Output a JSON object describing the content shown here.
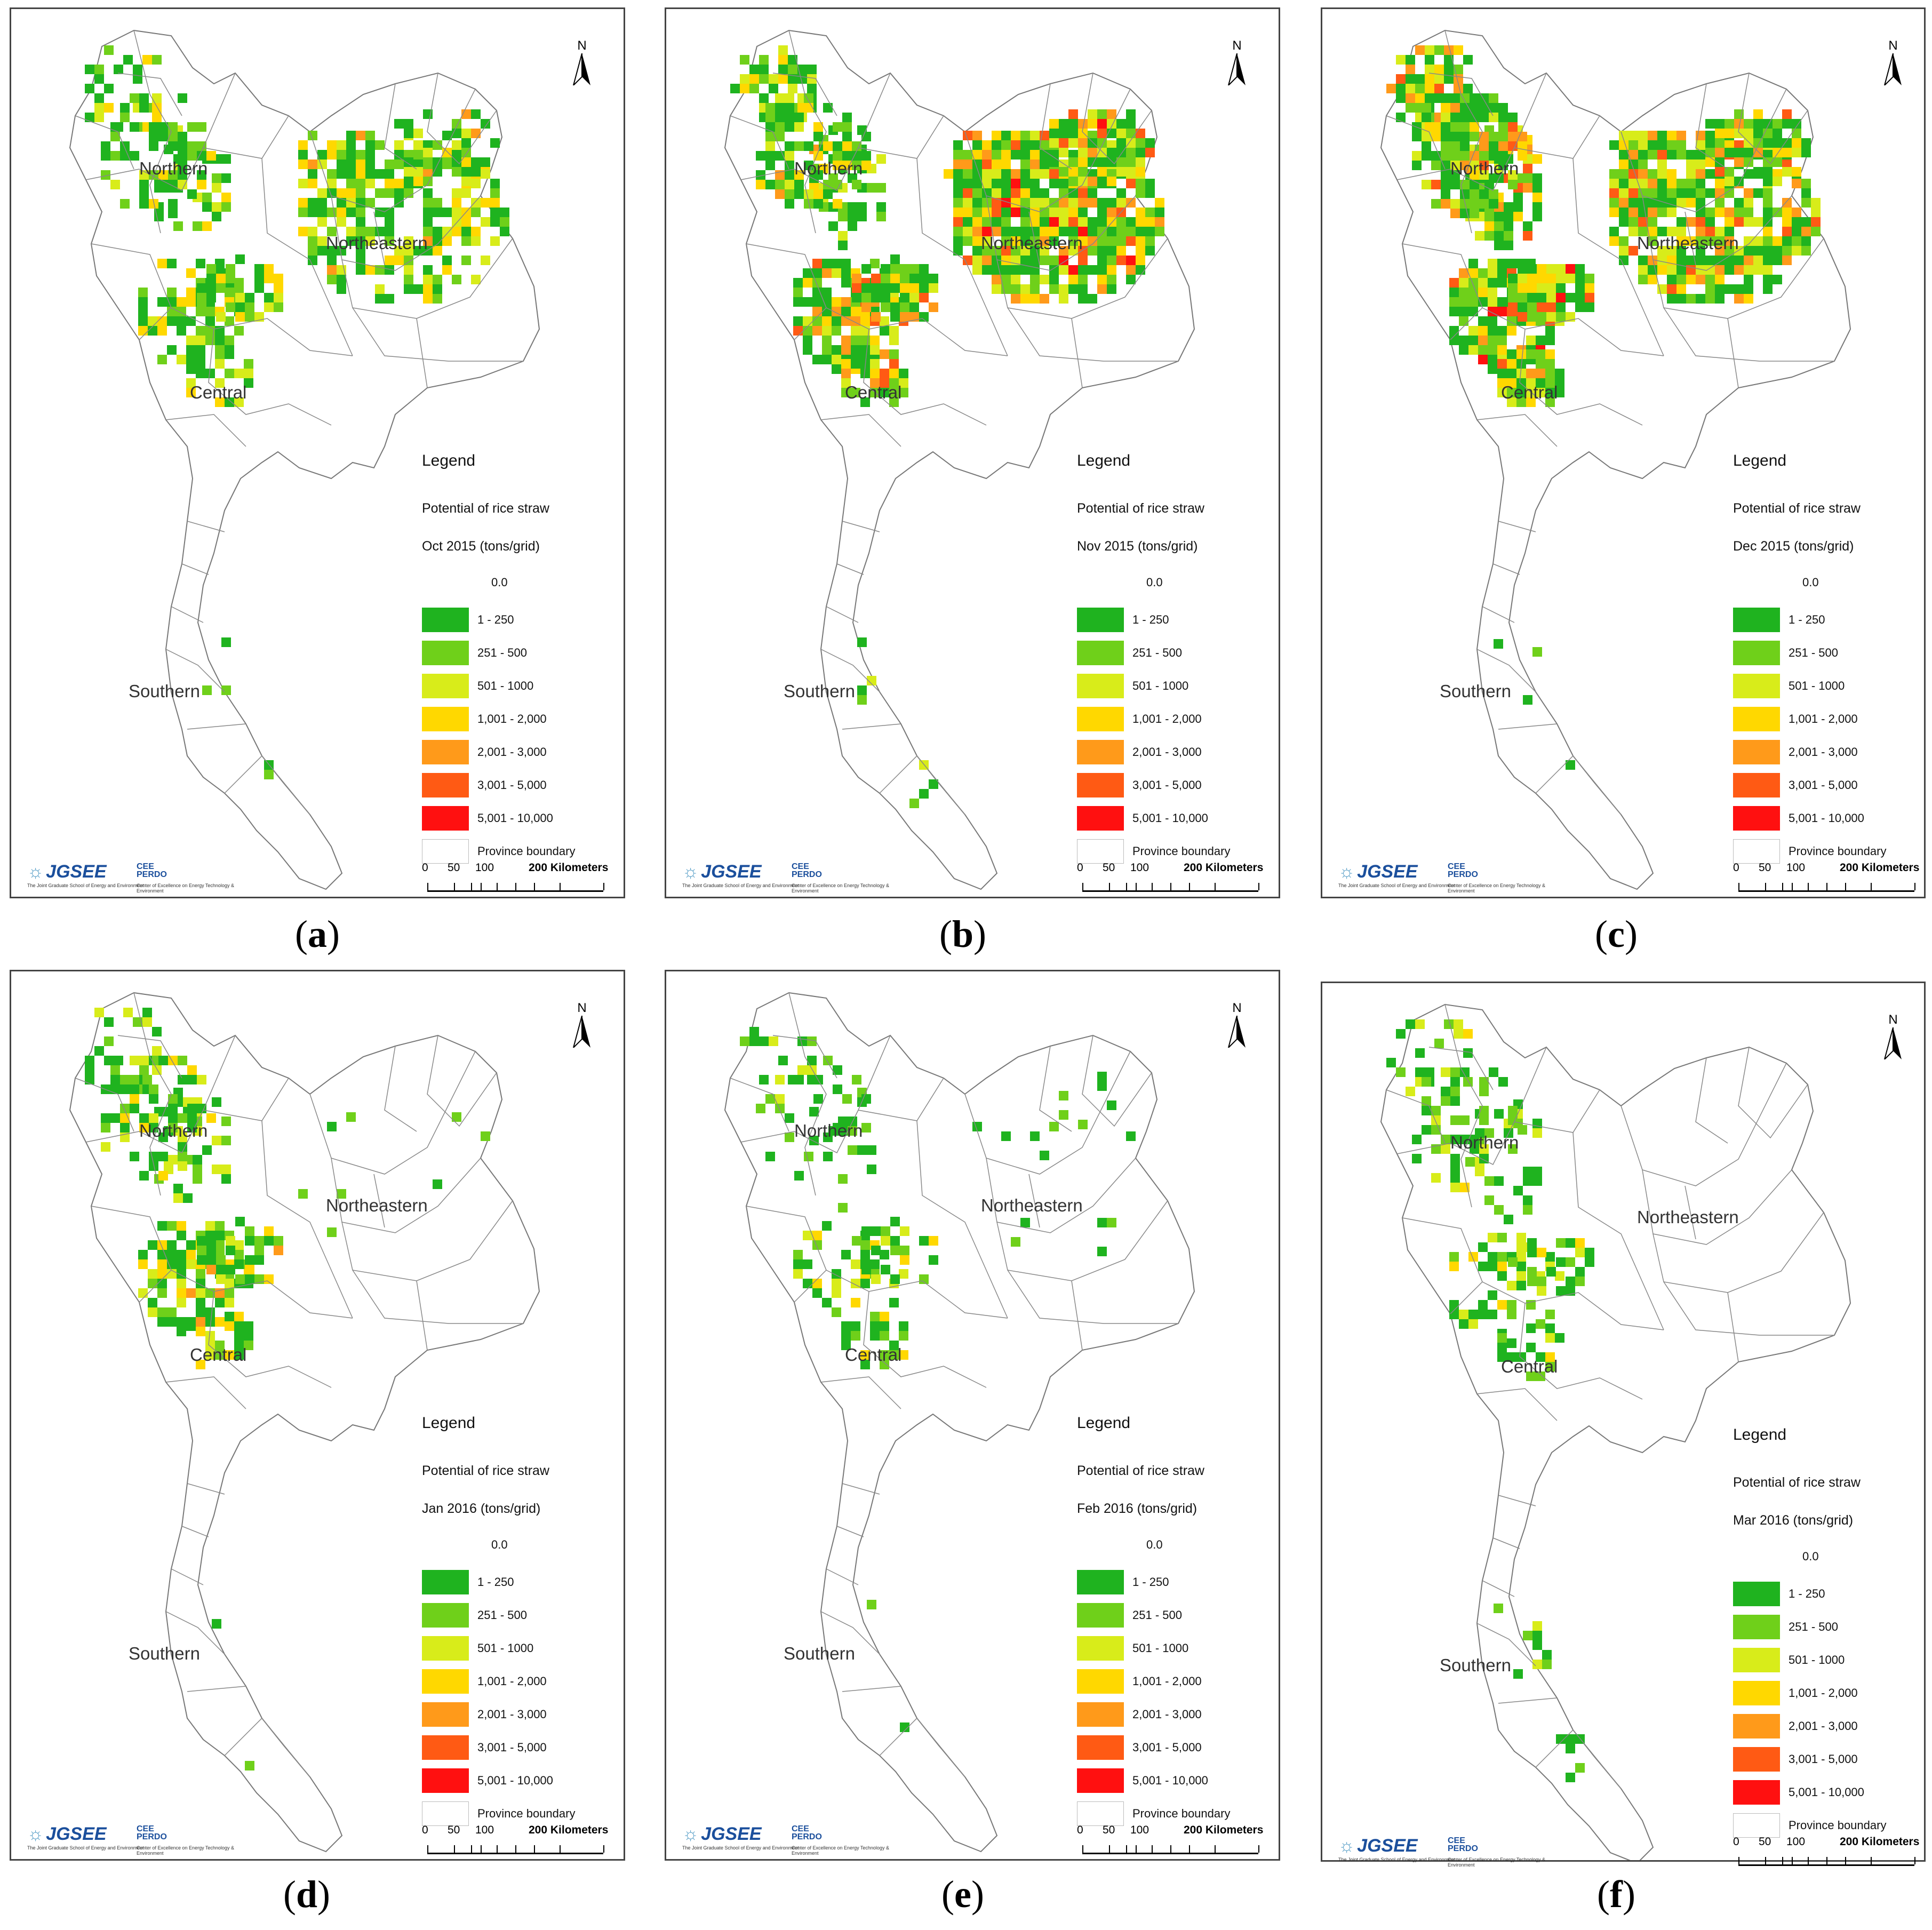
{
  "panels": [
    {
      "id": "a",
      "caption_letter": "a",
      "period": "Oct 2015 (tons/grid)"
    },
    {
      "id": "b",
      "caption_letter": "b",
      "period": "Nov 2015 (tons/grid)"
    },
    {
      "id": "c",
      "caption_letter": "c",
      "period": "Dec 2015 (tons/grid)"
    },
    {
      "id": "d",
      "caption_letter": "d",
      "period": "Jan 2016 (tons/grid)"
    },
    {
      "id": "e",
      "caption_letter": "e",
      "period": "Feb 2016 (tons/grid)"
    },
    {
      "id": "f",
      "caption_letter": "f",
      "period": "Mar 2016 (tons/grid)"
    }
  ],
  "caption_open": "(",
  "caption_close": ")",
  "regions": {
    "northern": "Northern",
    "northeastern": "Northeastern",
    "central": "Central",
    "southern": "Southern"
  },
  "legend": {
    "title": "Legend",
    "subtitle": "Potential of rice straw",
    "zero": "0.0",
    "classes": [
      {
        "label": "1 - 250",
        "color": "#1fb31f"
      },
      {
        "label": "251 - 500",
        "color": "#6fd01a"
      },
      {
        "label": "501 - 1000",
        "color": "#d8ec1a"
      },
      {
        "label": "1,001 - 2,000",
        "color": "#ffd800"
      },
      {
        "label": "2,001 - 3,000",
        "color": "#ff9a1a"
      },
      {
        "label": "3,001 - 5,000",
        "color": "#ff5a14"
      },
      {
        "label": "5,001 - 10,000",
        "color": "#ff1010"
      }
    ],
    "boundary_label": "Province boundary",
    "boundary_color": "#ffffff"
  },
  "scalebar": {
    "ticks": [
      "0",
      "50",
      "100",
      "200 Kilometers"
    ]
  },
  "north_label": "N",
  "logos": {
    "jgsee": "JGSEE",
    "cee_line1": "CEE",
    "cee_line2": "PERDO",
    "jgsee_sub": "The Joint Graduate School of Energy and Environment",
    "cee_sub": "Center of Excellence on Energy Technology & Environment"
  },
  "intensity": {
    "a": {
      "north": 0.35,
      "northeast": 0.55,
      "central": 0.5,
      "south": 0.08
    },
    "b": {
      "north": 0.55,
      "northeast": 0.85,
      "central": 0.8,
      "south": 0.12
    },
    "c": {
      "north": 0.75,
      "northeast": 0.75,
      "central": 0.85,
      "south": 0.12
    },
    "d": {
      "north": 0.35,
      "northeast": 0.02,
      "central": 0.6,
      "south": 0.06
    },
    "e": {
      "north": 0.2,
      "northeast": 0.03,
      "central": 0.4,
      "south": 0.05
    },
    "f": {
      "north": 0.3,
      "northeast": 0.0,
      "central": 0.4,
      "south": 0.2
    }
  }
}
